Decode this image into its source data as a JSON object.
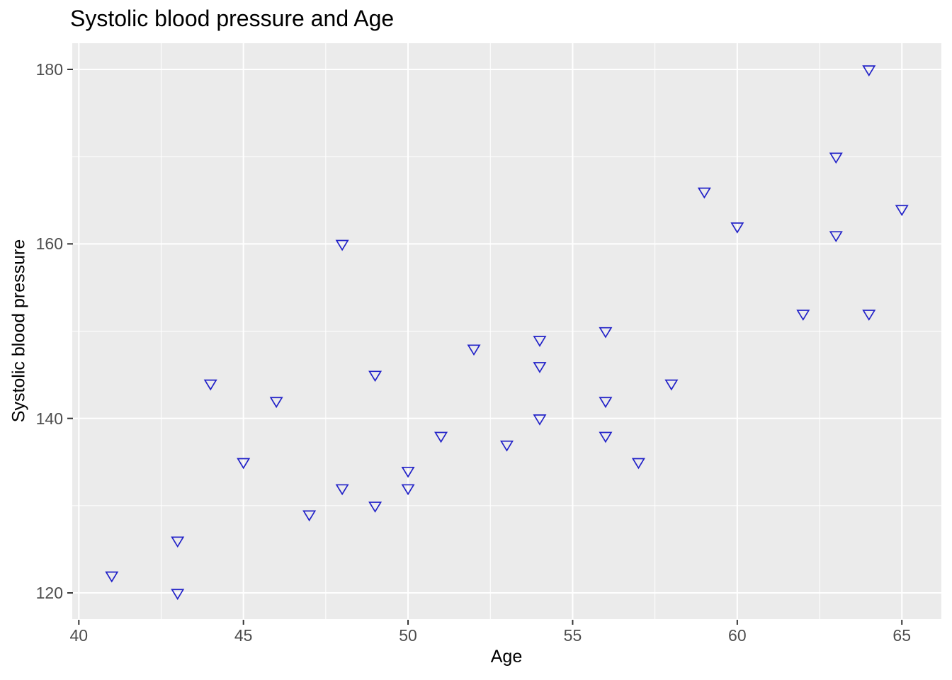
{
  "title": "Systolic blood pressure and Age",
  "chart_data": {
    "type": "scatter",
    "title": "Systolic blood pressure and Age",
    "xlabel": "Age",
    "ylabel": "Systolic blood pressure",
    "xlim": [
      39.8,
      66.2
    ],
    "ylim": [
      117,
      183
    ],
    "x_ticks": [
      40,
      45,
      50,
      55,
      60,
      65
    ],
    "y_ticks": [
      120,
      140,
      160,
      180
    ],
    "x_minor_gridlines": [
      42.5,
      47.5,
      52.5,
      57.5,
      62.5
    ],
    "y_minor_gridlines": [
      130,
      150,
      170
    ],
    "grid": "major-and-minor-white-on-gray",
    "legend_position": "none",
    "marker": "open-triangle-down",
    "points": [
      [
        41,
        122
      ],
      [
        43,
        120
      ],
      [
        43,
        126
      ],
      [
        44,
        144
      ],
      [
        45,
        135
      ],
      [
        46,
        142
      ],
      [
        47,
        129
      ],
      [
        48,
        132
      ],
      [
        48,
        160
      ],
      [
        49,
        130
      ],
      [
        49,
        145
      ],
      [
        50,
        132
      ],
      [
        50,
        134
      ],
      [
        51,
        138
      ],
      [
        52,
        148
      ],
      [
        53,
        137
      ],
      [
        54,
        140
      ],
      [
        54,
        146
      ],
      [
        54,
        149
      ],
      [
        56,
        138
      ],
      [
        56,
        142
      ],
      [
        56,
        150
      ],
      [
        57,
        135
      ],
      [
        58,
        144
      ],
      [
        59,
        166
      ],
      [
        60,
        162
      ],
      [
        62,
        152
      ],
      [
        63,
        161
      ],
      [
        63,
        170
      ],
      [
        64,
        152
      ],
      [
        64,
        180
      ],
      [
        65,
        164
      ]
    ]
  },
  "colors": {
    "panel_background": "#EBEBEB",
    "gridline": "#FFFFFF",
    "point_stroke": "#2222C8",
    "tick_mark": "#333333",
    "tick_label": "#4D4D4D",
    "title_text": "#000000"
  }
}
